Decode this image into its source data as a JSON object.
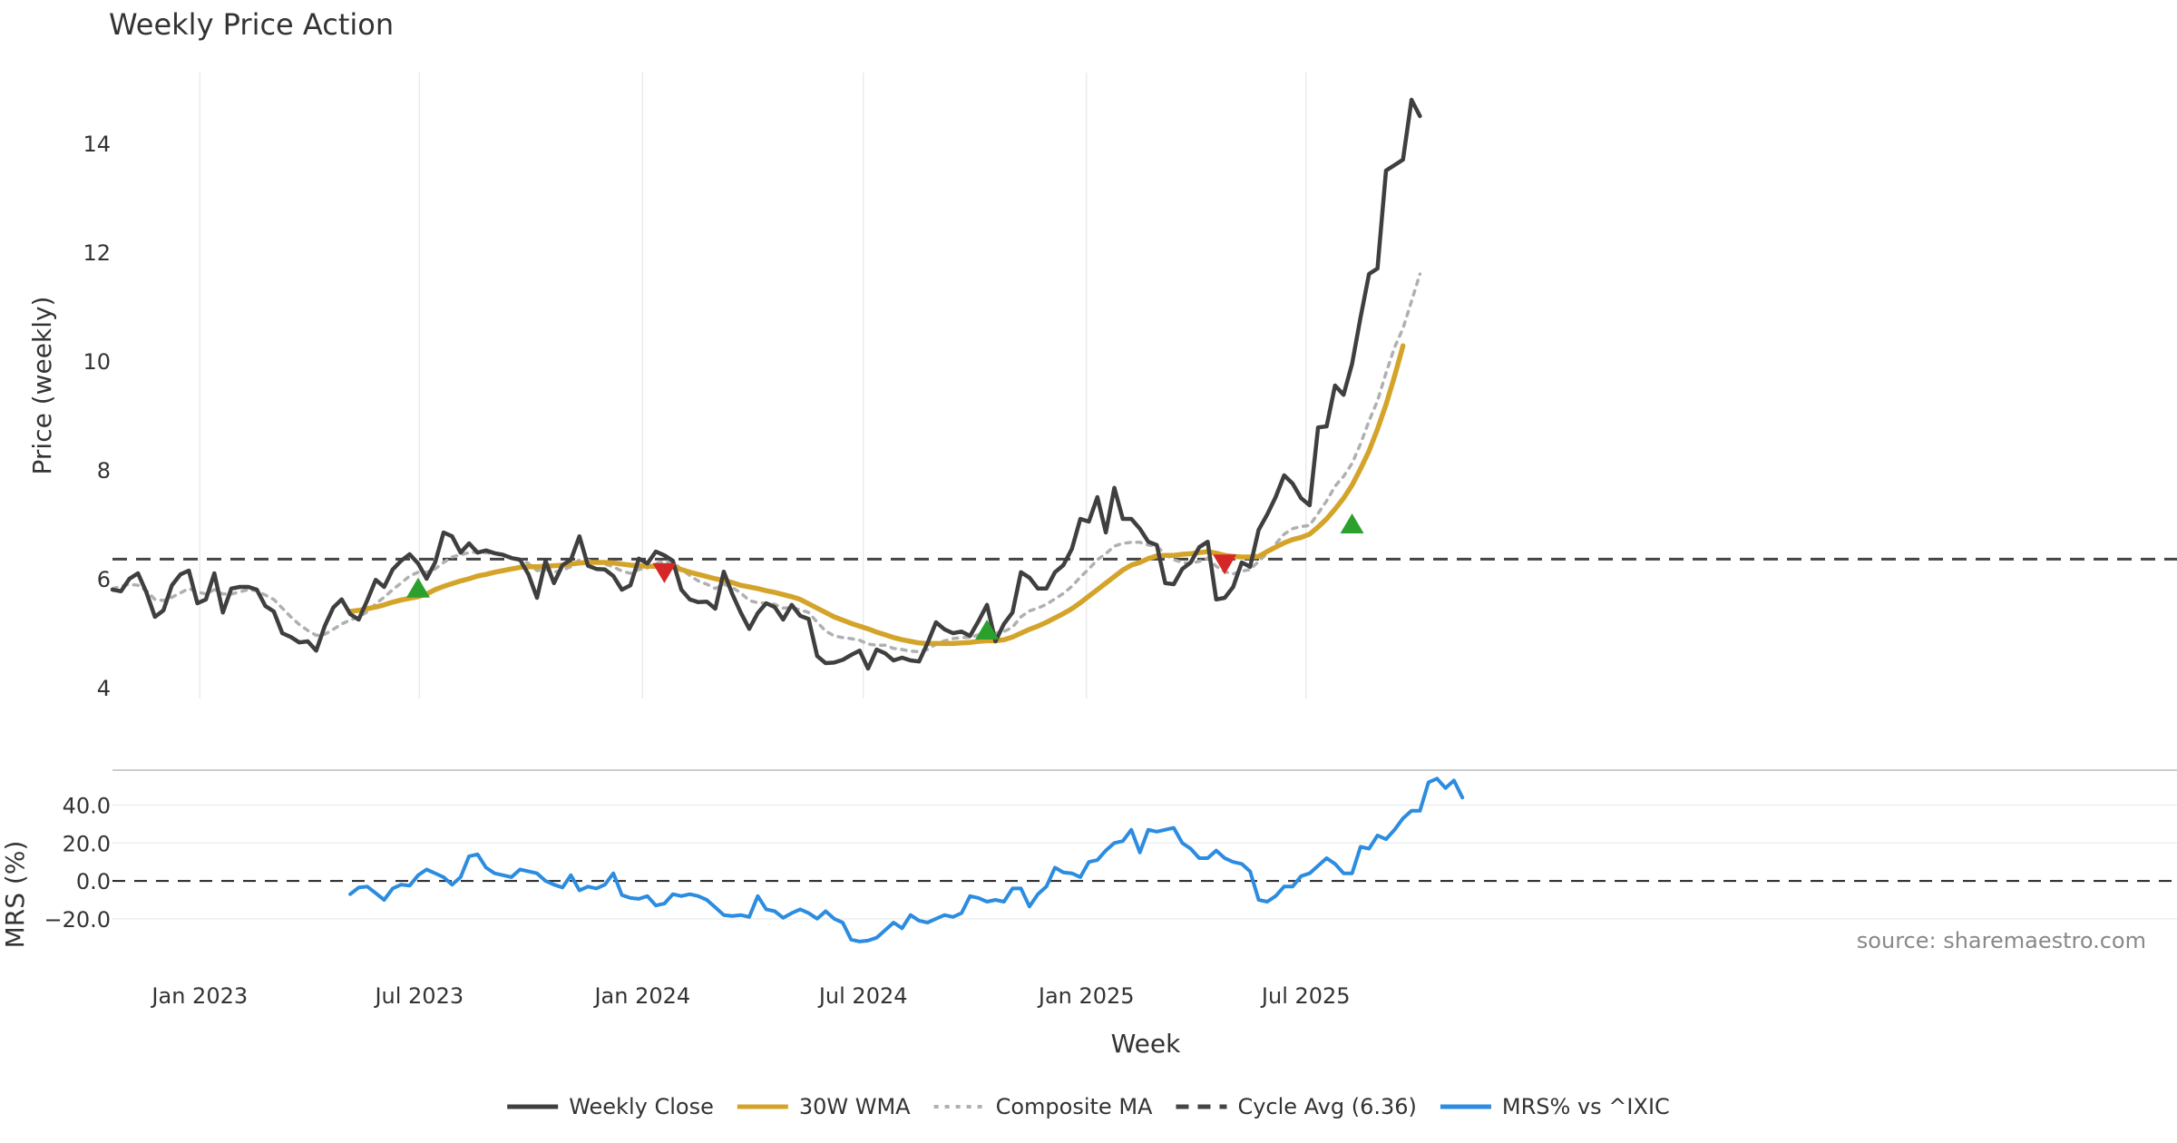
{
  "chart_data": {
    "type": "line",
    "title": "Weekly Price Action",
    "source": "source: sharemaestro.com",
    "xlabel": "Week",
    "x_ticks": [
      "Jan 2023",
      "Jul 2023",
      "Jan 2024",
      "Jul 2024",
      "Jan 2025",
      "Jul 2025"
    ],
    "x_start": "2022-10-21",
    "price_panel": {
      "ylabel": "Price (weekly)",
      "ylim": [
        3.8,
        15.3
      ],
      "y_ticks": [
        4,
        6,
        8,
        10,
        12,
        14
      ],
      "cycle_avg": 6.36
    },
    "mrs_panel": {
      "ylabel": "MRS (%)",
      "ylim": [
        -33,
        57
      ],
      "y_ticks": [
        "40.0",
        "20.0",
        "0.0",
        "−20.0"
      ],
      "y_tick_values": [
        40,
        20,
        0,
        -20
      ]
    },
    "legend": [
      {
        "label": "Weekly Close",
        "color": "#3f3f3f",
        "style": "solid"
      },
      {
        "label": "30W WMA",
        "color": "#d4a42a",
        "style": "solid"
      },
      {
        "label": "Composite MA",
        "color": "#b0b0b0",
        "style": "dotted"
      },
      {
        "label": "Cycle Avg (6.36)",
        "color": "#444444",
        "style": "dashed"
      },
      {
        "label": "MRS% vs ^IXIC",
        "color": "#2b8ce0",
        "style": "solid"
      }
    ],
    "series": [
      {
        "name": "Weekly Close",
        "color": "#3f3f3f",
        "start_index": 0,
        "values": [
          5.8,
          5.77,
          6.0,
          6.1,
          5.75,
          5.3,
          5.42,
          5.88,
          6.08,
          6.15,
          5.55,
          5.62,
          6.1,
          5.38,
          5.82,
          5.85,
          5.85,
          5.8,
          5.5,
          5.4,
          5.0,
          4.93,
          4.83,
          4.85,
          4.68,
          5.13,
          5.47,
          5.62,
          5.35,
          5.25,
          5.6,
          5.98,
          5.85,
          6.17,
          6.33,
          6.45,
          6.28,
          6.0,
          6.3,
          6.85,
          6.78,
          6.48,
          6.65,
          6.48,
          6.52,
          6.47,
          6.44,
          6.38,
          6.35,
          6.08,
          5.65,
          6.33,
          5.92,
          6.25,
          6.35,
          6.78,
          6.24,
          6.18,
          6.17,
          6.05,
          5.8,
          5.88,
          6.37,
          6.28,
          6.5,
          6.43,
          6.33,
          5.8,
          5.62,
          5.57,
          5.58,
          5.45,
          6.13,
          5.72,
          5.38,
          5.08,
          5.37,
          5.55,
          5.48,
          5.25,
          5.52,
          5.32,
          5.26,
          4.58,
          4.45,
          4.46,
          4.51,
          4.6,
          4.68,
          4.35,
          4.7,
          4.63,
          4.5,
          4.55,
          4.5,
          4.48,
          4.82,
          5.2,
          5.07,
          5.0,
          5.03,
          4.95,
          5.22,
          5.52,
          4.85,
          5.17,
          5.38,
          6.12,
          6.02,
          5.82,
          5.82,
          6.12,
          6.25,
          6.55,
          7.1,
          7.05,
          7.5,
          6.85,
          7.67,
          7.1,
          7.1,
          6.92,
          6.68,
          6.62,
          5.92,
          5.9,
          6.18,
          6.3,
          6.58,
          6.68,
          5.62,
          5.65,
          5.85,
          6.3,
          6.22,
          6.9,
          7.18,
          7.5,
          7.9,
          7.75,
          7.48,
          7.35,
          8.78,
          8.8,
          9.55,
          9.38,
          9.95,
          10.8,
          11.6,
          11.7,
          13.5,
          13.6,
          13.7,
          14.8,
          14.5
        ]
      },
      {
        "name": "30W WMA",
        "color": "#d4a42a",
        "start_index": 28,
        "values": [
          5.4,
          5.42,
          5.45,
          5.48,
          5.52,
          5.57,
          5.61,
          5.64,
          5.67,
          5.72,
          5.8,
          5.86,
          5.91,
          5.96,
          6.0,
          6.05,
          6.08,
          6.12,
          6.15,
          6.18,
          6.21,
          6.22,
          6.22,
          6.23,
          6.24,
          6.25,
          6.27,
          6.29,
          6.3,
          6.3,
          6.3,
          6.29,
          6.27,
          6.25,
          6.24,
          6.23,
          6.23,
          6.23,
          6.21,
          6.17,
          6.12,
          6.08,
          6.04,
          6.0,
          5.97,
          5.93,
          5.88,
          5.85,
          5.82,
          5.78,
          5.75,
          5.71,
          5.67,
          5.62,
          5.54,
          5.46,
          5.38,
          5.3,
          5.24,
          5.18,
          5.13,
          5.08,
          5.02,
          4.97,
          4.92,
          4.88,
          4.85,
          4.82,
          4.81,
          4.81,
          4.81,
          4.81,
          4.82,
          4.83,
          4.85,
          4.86,
          4.86,
          4.88,
          4.93,
          5.0,
          5.07,
          5.13,
          5.2,
          5.28,
          5.36,
          5.45,
          5.56,
          5.68,
          5.8,
          5.92,
          6.04,
          6.16,
          6.25,
          6.3,
          6.37,
          6.42,
          6.43,
          6.43,
          6.45,
          6.46,
          6.48,
          6.5,
          6.47,
          6.43,
          6.41,
          6.4,
          6.4,
          6.41,
          6.5,
          6.58,
          6.66,
          6.72,
          6.76,
          6.82,
          6.95,
          7.1,
          7.28,
          7.48,
          7.72,
          8.02,
          8.35,
          8.75,
          9.2,
          9.72,
          10.28
        ]
      },
      {
        "name": "Composite MA",
        "color": "#b0b0b0",
        "start_index": 0,
        "values": [
          5.82,
          5.86,
          5.9,
          5.88,
          5.78,
          5.62,
          5.6,
          5.66,
          5.74,
          5.82,
          5.76,
          5.72,
          5.8,
          5.72,
          5.72,
          5.76,
          5.8,
          5.78,
          5.7,
          5.62,
          5.46,
          5.3,
          5.16,
          5.05,
          4.96,
          4.98,
          5.07,
          5.17,
          5.24,
          5.3,
          5.39,
          5.54,
          5.66,
          5.8,
          5.92,
          6.05,
          6.12,
          6.12,
          6.18,
          6.3,
          6.4,
          6.44,
          6.48,
          6.49,
          6.48,
          6.46,
          6.43,
          6.4,
          6.36,
          6.28,
          6.15,
          6.17,
          6.12,
          6.16,
          6.22,
          6.35,
          6.34,
          6.3,
          6.27,
          6.22,
          6.14,
          6.1,
          6.17,
          6.2,
          6.28,
          6.32,
          6.3,
          6.18,
          6.06,
          5.96,
          5.9,
          5.82,
          5.9,
          5.84,
          5.74,
          5.6,
          5.56,
          5.55,
          5.53,
          5.46,
          5.47,
          5.43,
          5.38,
          5.2,
          5.04,
          4.95,
          4.92,
          4.9,
          4.87,
          4.8,
          4.78,
          4.78,
          4.72,
          4.7,
          4.67,
          4.66,
          4.7,
          4.8,
          4.86,
          4.9,
          4.92,
          4.92,
          4.97,
          5.06,
          5.0,
          5.03,
          5.11,
          5.3,
          5.41,
          5.46,
          5.53,
          5.63,
          5.73,
          5.86,
          6.03,
          6.18,
          6.35,
          6.46,
          6.6,
          6.65,
          6.67,
          6.67,
          6.62,
          6.6,
          6.45,
          6.35,
          6.3,
          6.28,
          6.32,
          6.38,
          6.23,
          6.13,
          6.09,
          6.14,
          6.17,
          6.32,
          6.47,
          6.64,
          6.82,
          6.92,
          6.96,
          6.98,
          7.2,
          7.43,
          7.7,
          7.88,
          8.12,
          8.48,
          8.9,
          9.27,
          9.78,
          10.25,
          10.6,
          11.1,
          11.6
        ]
      },
      {
        "name": "MRS% vs ^IXIC",
        "color": "#2b8ce0",
        "start_index": 28,
        "values": [
          -7,
          -3.5,
          -3,
          -6.5,
          -10,
          -4,
          -2,
          -2.5,
          3,
          6,
          4,
          2,
          -2,
          2,
          13,
          14,
          7,
          4,
          3,
          2,
          6,
          5,
          4,
          0,
          -2,
          -3.5,
          3,
          -5,
          -3,
          -4,
          -2,
          4,
          -7.5,
          -9,
          -9.5,
          -8,
          -13,
          -12,
          -7,
          -8,
          -7,
          -8,
          -10,
          -14,
          -18,
          -18.5,
          -18,
          -19,
          -8,
          -15,
          -16,
          -19.5,
          -17,
          -15,
          -17,
          -20,
          -16,
          -20,
          -22,
          -31,
          -32,
          -31.5,
          -30,
          -26,
          -22,
          -25,
          -18,
          -21,
          -22,
          -20,
          -18,
          -19,
          -17,
          -8,
          -9,
          -11,
          -10,
          -11,
          -4,
          -4,
          -13.5,
          -7,
          -3,
          7,
          4.5,
          4,
          2,
          10,
          11,
          16,
          20,
          21,
          27,
          15,
          27,
          26,
          27,
          28,
          20,
          17,
          12,
          12,
          16,
          12,
          10,
          9,
          5,
          -10,
          -11,
          -8,
          -3,
          -3,
          2.5,
          4,
          8,
          12,
          9,
          4,
          4,
          18,
          17,
          24,
          22,
          27,
          33,
          37,
          37,
          52,
          54,
          49,
          53,
          44
        ]
      }
    ],
    "buy_signals": [
      {
        "date": "2023-06-30",
        "price": 5.82
      },
      {
        "date": "2024-10-11",
        "price": 5.05
      },
      {
        "date": "2025-08-08",
        "price": 7.0
      }
    ],
    "sell_signals": [
      {
        "date": "2024-01-19",
        "price": 6.12
      },
      {
        "date": "2025-04-25",
        "price": 6.28
      }
    ]
  }
}
